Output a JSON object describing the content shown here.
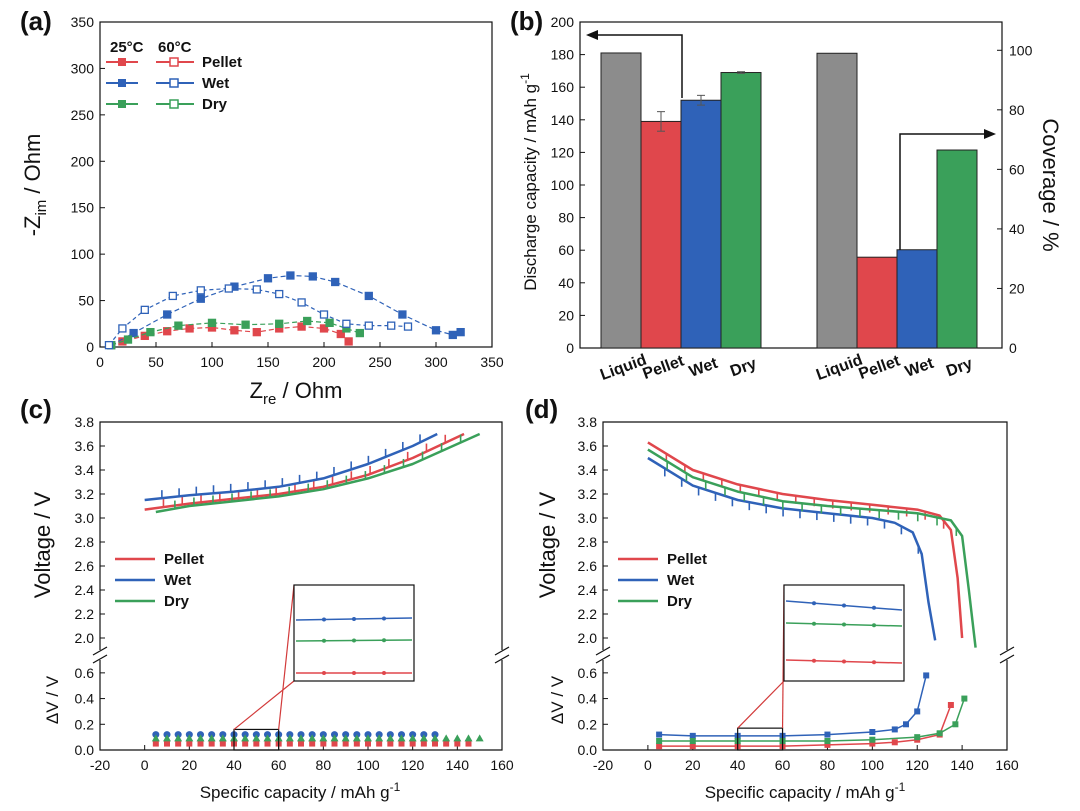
{
  "colors": {
    "pellet": "#e0474c",
    "wet": "#2f62b8",
    "dry": "#3aa05a",
    "liquid": "#8c8c8c",
    "inset_line": "#d23a3a"
  },
  "chart_data": [
    {
      "id": "a",
      "panel_label": "(a)",
      "type": "scatter",
      "xlabel_main": "Z",
      "xlabel_sub": "re",
      "xlabel_rest": " / Ohm",
      "ylabel_pre": "-Z",
      "ylabel_sub": "im",
      "ylabel_rest": " / Ohm",
      "xlim": [
        0,
        350
      ],
      "ylim": [
        0,
        350
      ],
      "xticks": [
        "0",
        "50",
        "100",
        "150",
        "200",
        "250",
        "300",
        "350"
      ],
      "yticks": [
        "0",
        "50",
        "100",
        "150",
        "200",
        "250",
        "300",
        "350"
      ],
      "legend": {
        "header_25": "25°C",
        "header_60": "60°C",
        "entries": [
          "Pellet",
          "Wet",
          "Dry"
        ]
      },
      "series": [
        {
          "name": "Pellet 25°C",
          "color": "pellet",
          "filled": true,
          "x": [
            10,
            20,
            40,
            60,
            80,
            100,
            120,
            140,
            160,
            180,
            200,
            215,
            222
          ],
          "y": [
            2,
            6,
            12,
            17,
            20,
            21,
            18,
            16,
            20,
            22,
            20,
            14,
            6
          ]
        },
        {
          "name": "Wet 25°C",
          "color": "wet",
          "filled": true,
          "x": [
            10,
            30,
            60,
            90,
            120,
            150,
            170,
            190,
            210,
            240,
            270,
            300,
            315,
            322
          ],
          "y": [
            2,
            15,
            35,
            52,
            65,
            74,
            77,
            76,
            70,
            55,
            35,
            18,
            13,
            16
          ]
        },
        {
          "name": "Dry 25°C",
          "color": "dry",
          "filled": true,
          "x": [
            10,
            25,
            45,
            70,
            100,
            130,
            160,
            185,
            205,
            220,
            232
          ],
          "y": [
            2,
            8,
            16,
            23,
            26,
            24,
            25,
            28,
            26,
            20,
            15
          ]
        },
        {
          "name": "Wet 60°C",
          "color": "wet",
          "filled": false,
          "x": [
            8,
            20,
            40,
            65,
            90,
            115,
            140,
            160,
            180,
            200,
            220,
            240,
            260,
            275
          ],
          "y": [
            2,
            20,
            40,
            55,
            61,
            63,
            62,
            57,
            48,
            35,
            25,
            23,
            23,
            22
          ]
        }
      ]
    },
    {
      "id": "b",
      "panel_label": "(b)",
      "type": "bar",
      "ylabel_left": "Discharge capacity / mAh g",
      "ylabel_left_sup": "-1",
      "ylabel_right": "Coverage / %",
      "ylim_left": [
        0,
        200
      ],
      "ylim_right": [
        0,
        109.5
      ],
      "yticks_left": [
        "0",
        "20",
        "40",
        "60",
        "80",
        "100",
        "120",
        "140",
        "160",
        "180",
        "200"
      ],
      "yticks_right": [
        "0",
        "20",
        "40",
        "60",
        "80",
        "100"
      ],
      "groups": [
        {
          "axis": "left",
          "categories": [
            "Liquid",
            "Pellet",
            "Wet",
            "Dry"
          ],
          "values": [
            181,
            139,
            152,
            169
          ],
          "errors": [
            0,
            6,
            3,
            0.5
          ]
        },
        {
          "axis": "right",
          "categories": [
            "Liquid",
            "Pellet",
            "Wet",
            "Dry"
          ],
          "values": [
            99,
            30.5,
            33,
            66.5
          ],
          "errors": [
            0,
            0,
            0,
            0
          ]
        }
      ]
    },
    {
      "id": "c",
      "panel_label": "(c)",
      "type": "line",
      "xlabel": "Specific capacity / mAh g",
      "xlabel_sup": "-1",
      "ylabel_top": "Voltage / V",
      "ylabel_bottom": "ΔV / V",
      "xlim": [
        -20,
        160
      ],
      "ylim_top": [
        1.9,
        3.8
      ],
      "ylim_bottom": [
        0,
        0.7
      ],
      "xticks": [
        "-20",
        "0",
        "20",
        "40",
        "60",
        "80",
        "100",
        "120",
        "140",
        "160"
      ],
      "yticks_top": [
        "2.0",
        "2.2",
        "2.4",
        "2.6",
        "2.8",
        "3.0",
        "3.2",
        "3.4",
        "3.6",
        "3.8"
      ],
      "yticks_bottom": [
        "0.0",
        "0.2",
        "0.4",
        "0.6"
      ],
      "legend": [
        "Pellet",
        "Wet",
        "Dry"
      ],
      "series": [
        {
          "name": "Pellet",
          "color": "pellet",
          "end_x": 143,
          "x": [
            0,
            20,
            40,
            60,
            80,
            100,
            120,
            143
          ],
          "y": [
            3.07,
            3.12,
            3.16,
            3.2,
            3.26,
            3.36,
            3.5,
            3.7
          ],
          "dv": 0.05
        },
        {
          "name": "Wet",
          "color": "wet",
          "end_x": 131,
          "x": [
            0,
            20,
            40,
            60,
            80,
            100,
            120,
            131
          ],
          "y": [
            3.15,
            3.19,
            3.22,
            3.26,
            3.33,
            3.45,
            3.6,
            3.7
          ],
          "dv": 0.12
        },
        {
          "name": "Dry",
          "color": "dry",
          "end_x": 150,
          "x": [
            5,
            20,
            40,
            60,
            80,
            100,
            120,
            150
          ],
          "y": [
            3.05,
            3.1,
            3.14,
            3.18,
            3.24,
            3.33,
            3.45,
            3.7
          ],
          "dv": 0.09
        }
      ],
      "dv_points": {
        "Pellet": [
          5,
          145
        ],
        "Wet": [
          5,
          130
        ],
        "Dry": [
          5,
          150
        ]
      },
      "inset": {
        "x_range": [
          40,
          60
        ]
      }
    },
    {
      "id": "d",
      "panel_label": "(d)",
      "type": "line",
      "xlabel": "Specific capacity / mAh g",
      "xlabel_sup": "-1",
      "ylabel_top": "Voltage / V",
      "ylabel_bottom": "ΔV / V",
      "xlim": [
        -20,
        160
      ],
      "ylim_top": [
        1.9,
        3.8
      ],
      "ylim_bottom": [
        0,
        0.7
      ],
      "xticks": [
        "-20",
        "0",
        "20",
        "40",
        "60",
        "80",
        "100",
        "120",
        "140",
        "160"
      ],
      "yticks_top": [
        "2.0",
        "2.2",
        "2.4",
        "2.6",
        "2.8",
        "3.0",
        "3.2",
        "3.4",
        "3.6",
        "3.8"
      ],
      "yticks_bottom": [
        "0.0",
        "0.2",
        "0.4",
        "0.6"
      ],
      "legend": [
        "Pellet",
        "Wet",
        "Dry"
      ],
      "series": [
        {
          "name": "Pellet",
          "color": "pellet",
          "x": [
            0,
            20,
            40,
            60,
            80,
            100,
            120,
            130,
            135,
            138,
            140
          ],
          "y": [
            3.63,
            3.4,
            3.28,
            3.2,
            3.15,
            3.11,
            3.07,
            3.02,
            2.9,
            2.5,
            2.0
          ]
        },
        {
          "name": "Wet",
          "color": "wet",
          "x": [
            0,
            20,
            40,
            60,
            80,
            100,
            110,
            118,
            122,
            125,
            128
          ],
          "y": [
            3.5,
            3.27,
            3.15,
            3.08,
            3.04,
            3.0,
            2.96,
            2.88,
            2.7,
            2.3,
            1.98
          ]
        },
        {
          "name": "Dry",
          "color": "dry",
          "x": [
            0,
            20,
            40,
            60,
            80,
            100,
            120,
            135,
            140,
            143,
            146
          ],
          "y": [
            3.57,
            3.34,
            3.22,
            3.14,
            3.1,
            3.07,
            3.04,
            2.98,
            2.85,
            2.4,
            1.92
          ]
        }
      ],
      "dv_series": [
        {
          "name": "Pellet",
          "color": "pellet",
          "x": [
            5,
            20,
            40,
            60,
            80,
            100,
            110,
            120,
            130,
            135
          ],
          "y": [
            0.03,
            0.03,
            0.03,
            0.03,
            0.04,
            0.05,
            0.06,
            0.08,
            0.12,
            0.35
          ]
        },
        {
          "name": "Wet",
          "color": "wet",
          "x": [
            5,
            20,
            40,
            60,
            80,
            100,
            110,
            115,
            120,
            124
          ],
          "y": [
            0.12,
            0.11,
            0.11,
            0.11,
            0.12,
            0.14,
            0.16,
            0.2,
            0.3,
            0.58
          ]
        },
        {
          "name": "Dry",
          "color": "dry",
          "x": [
            5,
            20,
            40,
            60,
            80,
            100,
            120,
            130,
            137,
            141
          ],
          "y": [
            0.07,
            0.07,
            0.07,
            0.07,
            0.07,
            0.08,
            0.1,
            0.13,
            0.2,
            0.4
          ]
        }
      ],
      "inset": {
        "x_range": [
          40,
          60
        ]
      }
    }
  ]
}
